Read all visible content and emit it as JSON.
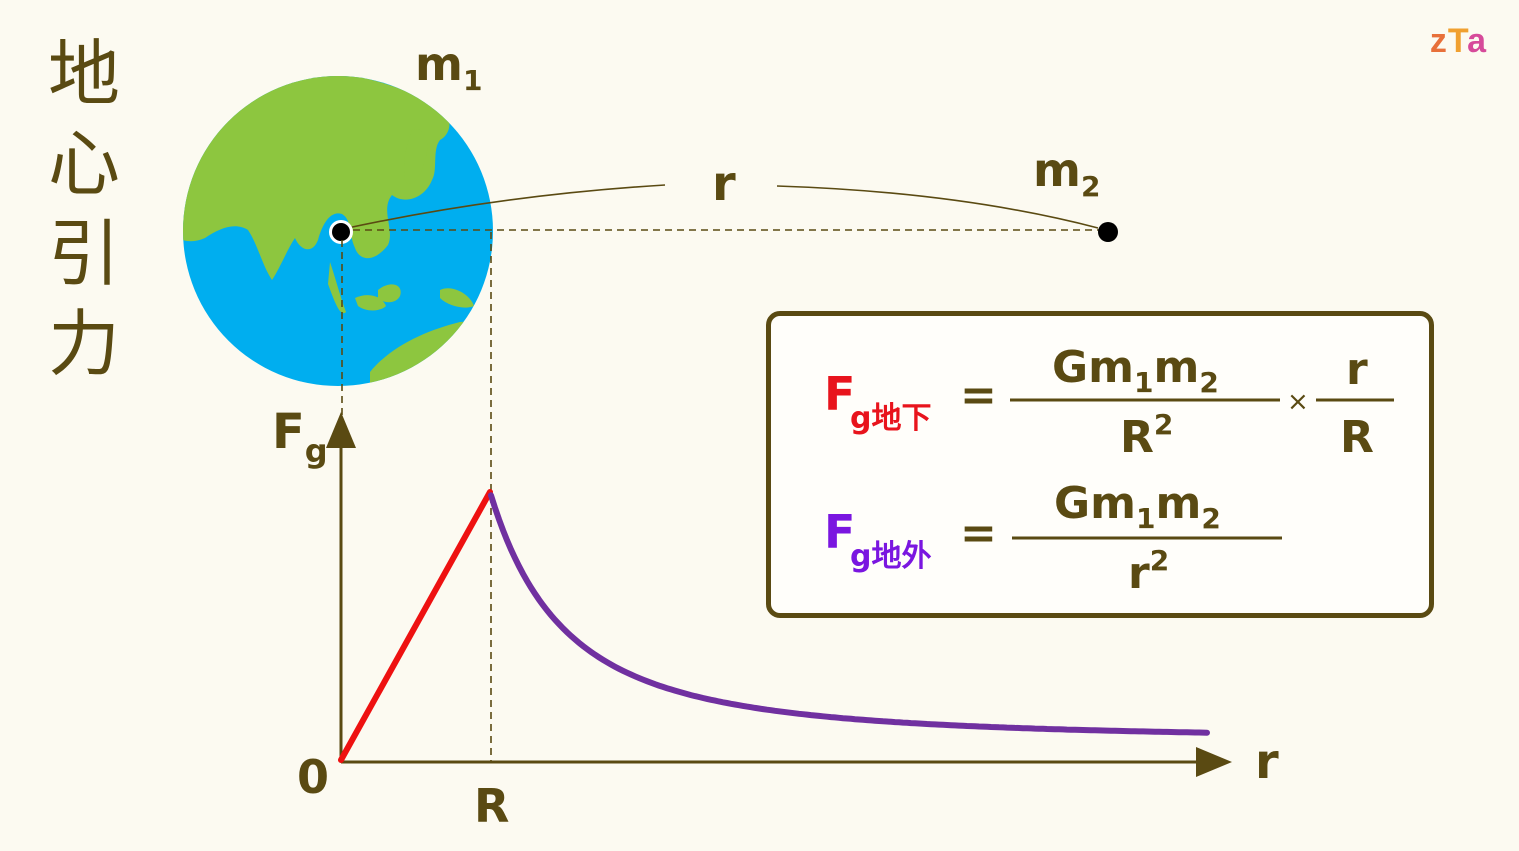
{
  "title_chars": [
    "地",
    "心",
    "引",
    "力"
  ],
  "logo": {
    "z": "z",
    "t": "T",
    "a": "a"
  },
  "labels": {
    "m1": "m",
    "m1_sub": "1",
    "m2": "m",
    "m2_sub": "2",
    "r_top": "r",
    "y_axis": "F",
    "y_axis_sub": "g",
    "origin": "0",
    "x_R": "R",
    "x_axis": "r"
  },
  "formula": {
    "inside": {
      "F": "F",
      "sub": "g地下",
      "eq": "=",
      "num": "Gm",
      "num_s1": "1",
      "num_m2": "m",
      "num_s2": "2",
      "den": "R",
      "den_sup": "2",
      "times": "×",
      "frac2_num": "r",
      "frac2_den": "R",
      "color": "#e8141c"
    },
    "outside": {
      "F": "F",
      "sub": "g地外",
      "eq": "=",
      "num": "Gm",
      "num_s1": "1",
      "num_m2": "m",
      "num_s2": "2",
      "den": "r",
      "den_sup": "2",
      "color": "#7a16e0"
    }
  },
  "colors": {
    "ocean": "#00aeef",
    "land": "#8dc63f",
    "axis": "#5a4a12",
    "inside_curve": "#ee1111",
    "outside_curve": "#7030a0"
  }
}
